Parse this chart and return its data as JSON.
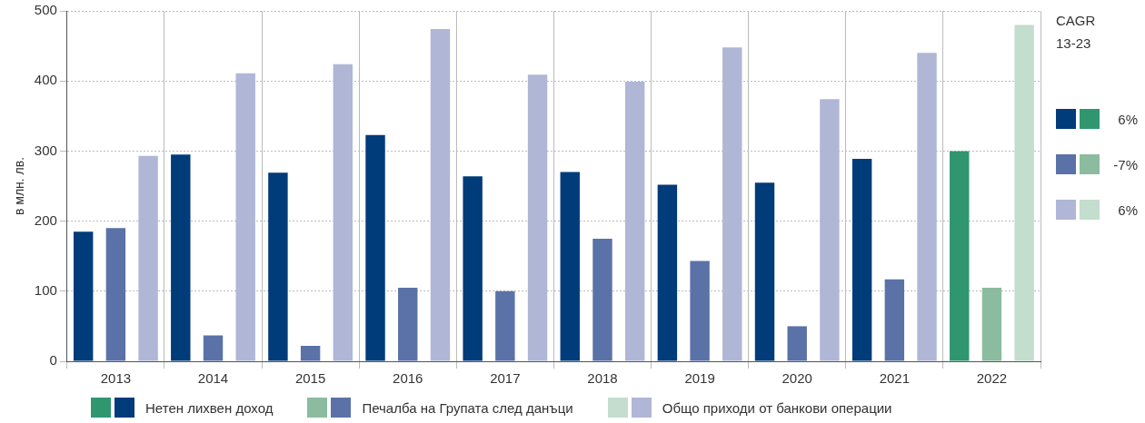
{
  "chart_data": {
    "type": "bar",
    "ylabel": "в млн. лв.",
    "categories": [
      "2013",
      "2014",
      "2015",
      "2016",
      "2017",
      "2018",
      "2019",
      "2020",
      "2021",
      "2022"
    ],
    "series": [
      {
        "name": "Нетен лихвен доход",
        "color": "#003b7a",
        "colors": [
          "#003b7a",
          "#003b7a",
          "#003b7a",
          "#003b7a",
          "#003b7a",
          "#003b7a",
          "#003b7a",
          "#003b7a",
          "#003b7a",
          "#2f9670"
        ],
        "values": [
          185,
          295,
          269,
          323,
          264,
          270,
          252,
          255,
          289,
          300
        ]
      },
      {
        "name": "Печалба на Групата след данъци",
        "color": "#5b72a8",
        "colors": [
          "#5b72a8",
          "#5b72a8",
          "#5b72a8",
          "#5b72a8",
          "#5b72a8",
          "#5b72a8",
          "#5b72a8",
          "#5b72a8",
          "#5b72a8",
          "#8bbc9f"
        ],
        "values": [
          190,
          37,
          22,
          105,
          100,
          175,
          143,
          50,
          117,
          105
        ]
      },
      {
        "name": "Общо приходи от банкови операции",
        "color": "#b0b6d6",
        "colors": [
          "#b0b6d6",
          "#b0b6d6",
          "#b0b6d6",
          "#b0b6d6",
          "#b0b6d6",
          "#b0b6d6",
          "#b0b6d6",
          "#b0b6d6",
          "#b0b6d6",
          "#c3ddcf"
        ],
        "values": [
          293,
          411,
          424,
          474,
          409,
          399,
          448,
          374,
          440,
          480
        ]
      }
    ],
    "ylim": [
      0,
      500
    ],
    "yticks": [
      0,
      100,
      200,
      300,
      400,
      500
    ],
    "grid": true,
    "legend": "bottom",
    "annotations": [
      "CAGR 13-23",
      "6%",
      "-7%",
      "6%"
    ]
  }
}
